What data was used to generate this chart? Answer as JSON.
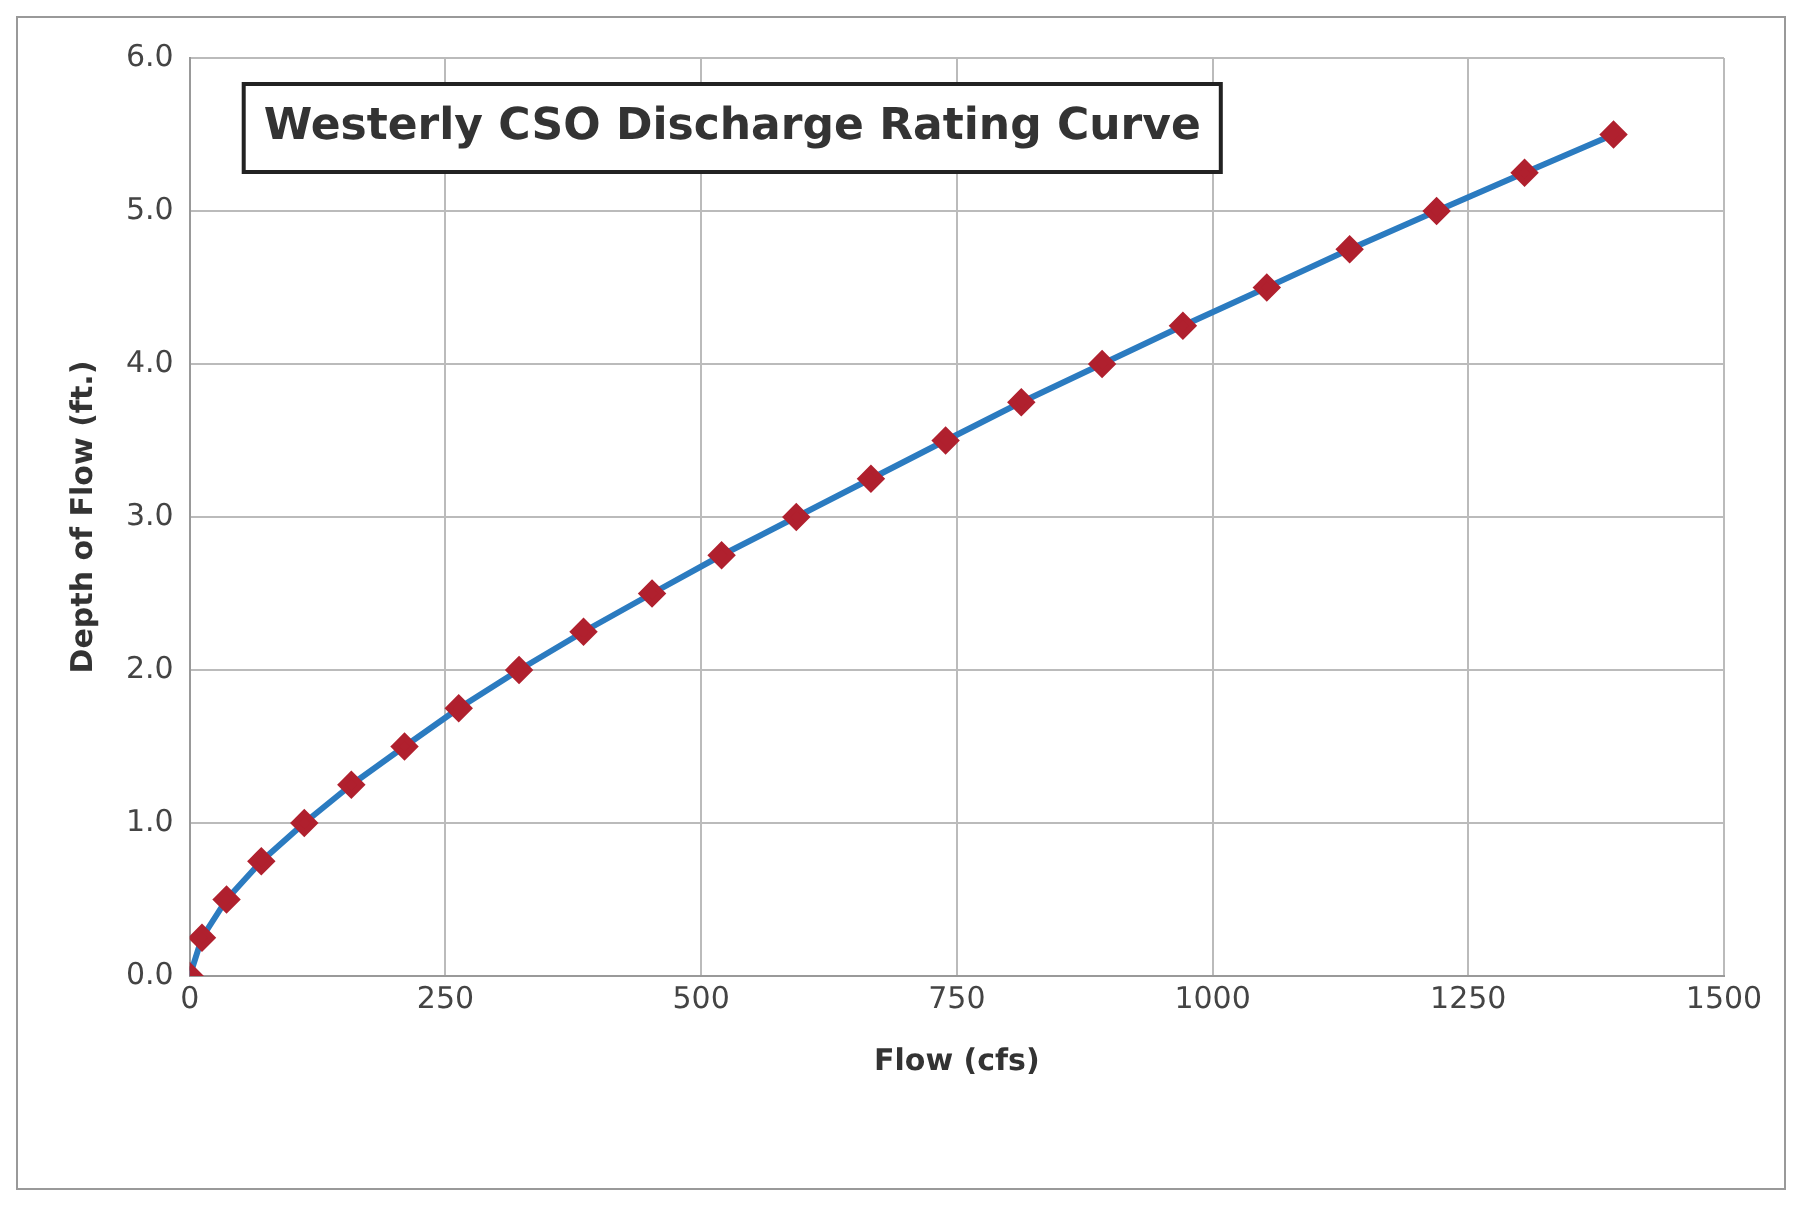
{
  "chart_data": {
    "type": "line",
    "title": "Westerly CSO Discharge Rating Curve",
    "xlabel": "Flow (cfs)",
    "ylabel": "Depth of Flow (ft.)",
    "x": [
      0,
      12,
      36,
      70,
      112,
      158,
      210,
      263,
      322,
      385,
      452,
      520,
      593,
      666,
      739,
      813,
      892,
      971,
      1053,
      1134,
      1219,
      1305,
      1392
    ],
    "series": [
      {
        "color": "#2b7bc0",
        "values": [
          0,
          0.25,
          0.5,
          0.75,
          1.0,
          1.25,
          1.5,
          1.75,
          2.0,
          2.25,
          2.5,
          2.75,
          3.0,
          3.25,
          3.5,
          3.75,
          4.0,
          4.25,
          4.5,
          4.75,
          5.0,
          5.25,
          5.5
        ]
      }
    ],
    "xlim": [
      0,
      1500
    ],
    "xticks": [
      0,
      250,
      500,
      750,
      1000,
      1250,
      1500
    ],
    "ylim": [
      0,
      6
    ],
    "yticks": [
      {
        "value": 0,
        "label": "0.0"
      },
      {
        "value": 1,
        "label": "1.0"
      },
      {
        "value": 2,
        "label": "2.0"
      },
      {
        "value": 3,
        "label": "3.0"
      },
      {
        "value": 4,
        "label": "4.0"
      },
      {
        "value": 5,
        "label": "5.0"
      },
      {
        "value": 6,
        "label": "6.0"
      }
    ],
    "grid": true,
    "legend": false,
    "marker": "diamond",
    "line_style": "solid"
  }
}
